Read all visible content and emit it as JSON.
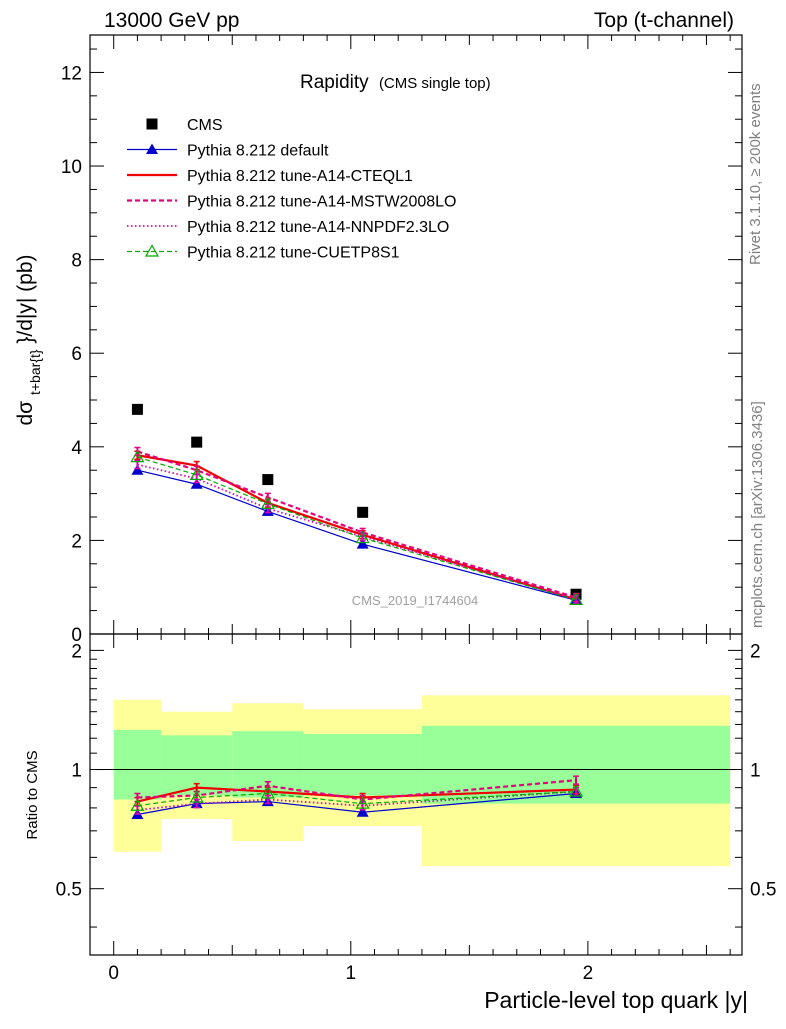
{
  "header": {
    "left": "13000 GeV pp",
    "right": "Top (t-channel)"
  },
  "side_labels": {
    "rivet": "Rivet 3.1.10, ≥ 200k events",
    "mcplots": "mcplots.cern.ch [arXiv:1306.3436]"
  },
  "colors": {
    "cms": "#000000",
    "default": "#0000cc",
    "a14_cteql1": "#ee0000",
    "a14_mstw": "#e6007e",
    "a14_nnpdf": "#dd00bb",
    "cuetp8s1": "#00aa00",
    "band_inner": "#99ff99",
    "band_outer": "#ffff99"
  },
  "chart_data": [
    {
      "type": "line",
      "title": "Rapidity",
      "subtitle": "(CMS single top)",
      "ylabel_main": "dσ",
      "ylabel_sub": "t+bar{t}",
      "ylabel_tail": "}/d|y|  (pb)",
      "xlim": [
        -0.1,
        2.65
      ],
      "ylim": [
        0,
        12.8
      ],
      "yticks": [
        0,
        2,
        4,
        6,
        8,
        10,
        12
      ],
      "watermark": "CMS_2019_I1744604",
      "x": [
        0.1,
        0.35,
        0.65,
        1.05,
        1.95
      ],
      "series": [
        {
          "name": "CMS",
          "key": "cms",
          "values": [
            4.8,
            4.1,
            3.3,
            2.6,
            0.85
          ]
        },
        {
          "name": "Pythia 8.212 default",
          "key": "default",
          "values": [
            3.5,
            3.2,
            2.62,
            1.92,
            0.72
          ]
        },
        {
          "name": "Pythia 8.212 tune-A14-CTEQL1",
          "key": "a14_cteql1",
          "values": [
            3.82,
            3.6,
            2.8,
            2.12,
            0.74
          ]
        },
        {
          "name": "Pythia 8.212 tune-A14-MSTW2008LO",
          "key": "a14_mstw",
          "values": [
            3.9,
            3.5,
            2.92,
            2.17,
            0.78
          ]
        },
        {
          "name": "Pythia 8.212 tune-A14-NNPDF2.3LO",
          "key": "a14_nnpdf",
          "values": [
            3.62,
            3.32,
            2.68,
            2.08,
            0.74
          ]
        },
        {
          "name": "Pythia 8.212 tune-CUETP8S1",
          "key": "cuetp8s1",
          "values": [
            3.78,
            3.4,
            2.78,
            2.05,
            0.73
          ]
        }
      ]
    },
    {
      "type": "line",
      "ylabel": "Ratio to CMS",
      "xlabel": "Particle-level top quark |y|",
      "xlim": [
        -0.1,
        2.65
      ],
      "ylim": [
        0.34,
        2.2
      ],
      "yticks": [
        0.5,
        1,
        2
      ],
      "ytick_labels": [
        "0.5",
        "1",
        "2"
      ],
      "xticks": [
        0,
        1,
        2
      ],
      "xtick_labels": [
        "0",
        "1",
        "2"
      ],
      "x": [
        0.1,
        0.35,
        0.65,
        1.05,
        1.95
      ],
      "bins": [
        [
          0.0,
          0.2
        ],
        [
          0.2,
          0.5
        ],
        [
          0.5,
          0.8
        ],
        [
          0.8,
          1.3
        ],
        [
          1.3,
          2.6
        ]
      ],
      "band_inner": [
        [
          0.84,
          1.26
        ],
        [
          0.86,
          1.22
        ],
        [
          0.85,
          1.25
        ],
        [
          0.86,
          1.23
        ],
        [
          0.82,
          1.29
        ]
      ],
      "band_outer": [
        [
          0.62,
          1.5
        ],
        [
          0.75,
          1.4
        ],
        [
          0.66,
          1.47
        ],
        [
          0.72,
          1.42
        ],
        [
          0.57,
          1.54
        ]
      ],
      "series": [
        {
          "name": "Pythia 8.212 default",
          "key": "default",
          "values": [
            0.77,
            0.82,
            0.83,
            0.78,
            0.87
          ]
        },
        {
          "name": "Pythia 8.212 tune-A14-CTEQL1",
          "key": "a14_cteql1",
          "values": [
            0.83,
            0.9,
            0.88,
            0.85,
            0.89
          ]
        },
        {
          "name": "Pythia 8.212 tune-A14-MSTW2008LO",
          "key": "a14_mstw",
          "values": [
            0.85,
            0.86,
            0.91,
            0.84,
            0.94
          ]
        },
        {
          "name": "Pythia 8.212 tune-A14-NNPDF2.3LO",
          "key": "a14_nnpdf",
          "values": [
            0.79,
            0.82,
            0.84,
            0.81,
            0.88
          ]
        },
        {
          "name": "Pythia 8.212 tune-CUETP8S1",
          "key": "cuetp8s1",
          "values": [
            0.81,
            0.85,
            0.87,
            0.82,
            0.88
          ]
        }
      ]
    }
  ]
}
